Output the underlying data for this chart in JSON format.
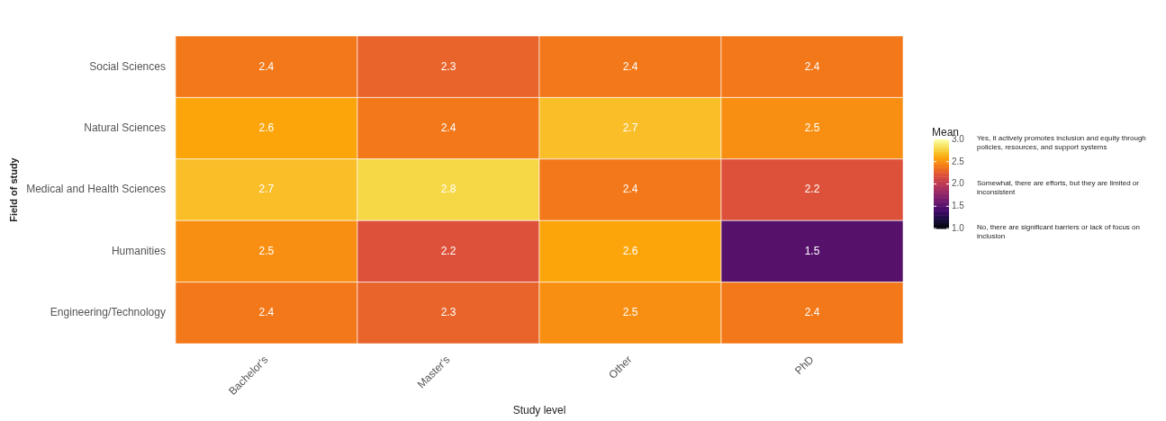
{
  "chart_data": {
    "type": "heatmap",
    "xlabel": "Study level",
    "ylabel": "Field of study",
    "legend_title": "Mean",
    "categories": [
      "Bachelor's",
      "Master's",
      "Other",
      "PhD"
    ],
    "y_categories": [
      "Social Sciences",
      "Natural Sciences",
      "Medical and Health Sciences",
      "Humanities",
      "Engineering/Technology"
    ],
    "cells": [
      [
        2.4,
        2.3,
        2.4,
        2.4
      ],
      [
        2.6,
        2.4,
        2.7,
        2.5
      ],
      [
        2.7,
        2.8,
        2.4,
        2.2
      ],
      [
        2.5,
        2.2,
        2.6,
        1.5
      ],
      [
        2.4,
        2.3,
        2.5,
        2.4
      ]
    ],
    "clim": [
      1,
      3
    ],
    "cticks": [
      {
        "value": 1,
        "label": "1.0"
      },
      {
        "value": 1.5,
        "label": "1.5"
      },
      {
        "value": 2,
        "label": "2.0"
      },
      {
        "value": 2.5,
        "label": "2.5"
      },
      {
        "value": 3,
        "label": "3.0"
      }
    ],
    "annotations": [
      "Yes, it actively promotes inclusion and equity through policies, resources, and support systems",
      "Somewhat, there are efforts, but they are limited or inconsistent",
      "No, there are significant barriers or lack of focus on inclusion"
    ],
    "data_labels": true
  }
}
